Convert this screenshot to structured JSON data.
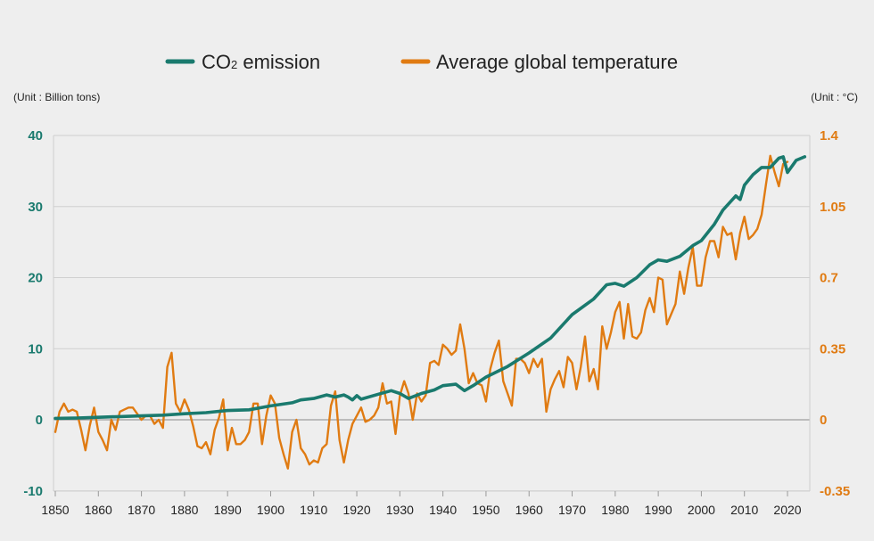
{
  "legend": {
    "co2_label_main": "CO",
    "co2_label_sub": "2",
    "co2_label_rest": " emission",
    "temp_label": "Average global temperature"
  },
  "units": {
    "left": "(Unit : Billion tons)",
    "right": "(Unit : °C)"
  },
  "colors": {
    "co2": "#1a7a6e",
    "temp": "#e07b12",
    "grid": "#cfcfcf",
    "zero": "#8a8a8a",
    "background": "#eeeeee"
  },
  "chart_data": {
    "type": "line",
    "title": "",
    "xlabel": "",
    "ylabel_left": "(Unit : Billion tons)",
    "ylabel_right": "(Unit : °C)",
    "xlim": [
      1850,
      2020
    ],
    "ylim_left": [
      -10,
      40
    ],
    "ylim_right": [
      -0.35,
      1.4
    ],
    "x_ticks": [
      1850,
      1860,
      1870,
      1880,
      1890,
      1900,
      1910,
      1920,
      1930,
      1940,
      1950,
      1960,
      1970,
      1980,
      1990,
      2000,
      2010,
      2020
    ],
    "y_ticks_left": [
      "-10",
      "0",
      "10",
      "20",
      "30",
      "40"
    ],
    "y_ticks_left_values": [
      -10,
      0,
      10,
      20,
      30,
      40
    ],
    "y_ticks_right": [
      "-0.35",
      "0",
      "0.35",
      "0.7",
      "1.05",
      "1.4"
    ],
    "y_ticks_right_values": [
      -0.35,
      0,
      0.35,
      0.7,
      1.05,
      1.4
    ],
    "series": [
      {
        "name": "CO2 emission",
        "axis": "left",
        "points": [
          [
            1850,
            0.2
          ],
          [
            1855,
            0.25
          ],
          [
            1860,
            0.35
          ],
          [
            1865,
            0.45
          ],
          [
            1870,
            0.55
          ],
          [
            1875,
            0.65
          ],
          [
            1880,
            0.85
          ],
          [
            1885,
            1.0
          ],
          [
            1890,
            1.3
          ],
          [
            1895,
            1.4
          ],
          [
            1900,
            1.95
          ],
          [
            1905,
            2.4
          ],
          [
            1907,
            2.8
          ],
          [
            1910,
            3.0
          ],
          [
            1913,
            3.5
          ],
          [
            1915,
            3.2
          ],
          [
            1917,
            3.5
          ],
          [
            1918,
            3.2
          ],
          [
            1919,
            2.8
          ],
          [
            1920,
            3.4
          ],
          [
            1921,
            2.9
          ],
          [
            1925,
            3.6
          ],
          [
            1928,
            4.1
          ],
          [
            1930,
            3.7
          ],
          [
            1932,
            3.0
          ],
          [
            1935,
            3.7
          ],
          [
            1938,
            4.2
          ],
          [
            1940,
            4.8
          ],
          [
            1943,
            5.0
          ],
          [
            1945,
            4.1
          ],
          [
            1947,
            4.8
          ],
          [
            1950,
            6.0
          ],
          [
            1955,
            7.5
          ],
          [
            1960,
            9.4
          ],
          [
            1965,
            11.5
          ],
          [
            1970,
            14.8
          ],
          [
            1975,
            17.0
          ],
          [
            1978,
            19.0
          ],
          [
            1980,
            19.2
          ],
          [
            1982,
            18.8
          ],
          [
            1985,
            20.0
          ],
          [
            1988,
            21.8
          ],
          [
            1990,
            22.5
          ],
          [
            1992,
            22.3
          ],
          [
            1995,
            23.0
          ],
          [
            1998,
            24.5
          ],
          [
            2000,
            25.2
          ],
          [
            2003,
            27.5
          ],
          [
            2005,
            29.5
          ],
          [
            2008,
            31.5
          ],
          [
            2009,
            31.0
          ],
          [
            2010,
            33.0
          ],
          [
            2012,
            34.5
          ],
          [
            2014,
            35.5
          ],
          [
            2016,
            35.5
          ],
          [
            2018,
            36.8
          ],
          [
            2019,
            37.0
          ],
          [
            2020,
            34.8
          ],
          [
            2022,
            36.5
          ],
          [
            2024,
            37.0
          ]
        ]
      },
      {
        "name": "Average global temperature",
        "axis": "right",
        "points": [
          [
            1850,
            -0.06
          ],
          [
            1851,
            0.04
          ],
          [
            1852,
            0.08
          ],
          [
            1853,
            0.04
          ],
          [
            1854,
            0.05
          ],
          [
            1855,
            0.04
          ],
          [
            1856,
            -0.05
          ],
          [
            1857,
            -0.15
          ],
          [
            1858,
            -0.03
          ],
          [
            1859,
            0.06
          ],
          [
            1860,
            -0.06
          ],
          [
            1861,
            -0.1
          ],
          [
            1862,
            -0.15
          ],
          [
            1863,
            0.0
          ],
          [
            1864,
            -0.05
          ],
          [
            1865,
            0.04
          ],
          [
            1866,
            0.05
          ],
          [
            1867,
            0.06
          ],
          [
            1868,
            0.06
          ],
          [
            1869,
            0.03
          ],
          [
            1870,
            0.0
          ],
          [
            1871,
            0.02
          ],
          [
            1872,
            0.02
          ],
          [
            1873,
            -0.02
          ],
          [
            1874,
            0.0
          ],
          [
            1875,
            -0.04
          ],
          [
            1876,
            0.26
          ],
          [
            1877,
            0.33
          ],
          [
            1878,
            0.08
          ],
          [
            1879,
            0.04
          ],
          [
            1880,
            0.1
          ],
          [
            1881,
            0.05
          ],
          [
            1882,
            -0.03
          ],
          [
            1883,
            -0.13
          ],
          [
            1884,
            -0.14
          ],
          [
            1885,
            -0.11
          ],
          [
            1886,
            -0.17
          ],
          [
            1887,
            -0.05
          ],
          [
            1888,
            0.01
          ],
          [
            1889,
            0.1
          ],
          [
            1890,
            -0.15
          ],
          [
            1891,
            -0.04
          ],
          [
            1892,
            -0.12
          ],
          [
            1893,
            -0.12
          ],
          [
            1894,
            -0.1
          ],
          [
            1895,
            -0.06
          ],
          [
            1896,
            0.08
          ],
          [
            1897,
            0.08
          ],
          [
            1898,
            -0.12
          ],
          [
            1899,
            0.02
          ],
          [
            1900,
            0.12
          ],
          [
            1901,
            0.08
          ],
          [
            1902,
            -0.09
          ],
          [
            1903,
            -0.17
          ],
          [
            1904,
            -0.24
          ],
          [
            1905,
            -0.06
          ],
          [
            1906,
            0.0
          ],
          [
            1907,
            -0.14
          ],
          [
            1908,
            -0.17
          ],
          [
            1909,
            -0.22
          ],
          [
            1910,
            -0.2
          ],
          [
            1911,
            -0.21
          ],
          [
            1912,
            -0.14
          ],
          [
            1913,
            -0.12
          ],
          [
            1914,
            0.07
          ],
          [
            1915,
            0.14
          ],
          [
            1916,
            -0.1
          ],
          [
            1917,
            -0.21
          ],
          [
            1918,
            -0.1
          ],
          [
            1919,
            -0.02
          ],
          [
            1920,
            0.02
          ],
          [
            1921,
            0.06
          ],
          [
            1922,
            -0.01
          ],
          [
            1923,
            0.0
          ],
          [
            1924,
            0.02
          ],
          [
            1925,
            0.06
          ],
          [
            1926,
            0.18
          ],
          [
            1927,
            0.08
          ],
          [
            1928,
            0.09
          ],
          [
            1929,
            -0.07
          ],
          [
            1930,
            0.12
          ],
          [
            1931,
            0.19
          ],
          [
            1932,
            0.13
          ],
          [
            1933,
            0.0
          ],
          [
            1934,
            0.13
          ],
          [
            1935,
            0.09
          ],
          [
            1936,
            0.12
          ],
          [
            1937,
            0.28
          ],
          [
            1938,
            0.29
          ],
          [
            1939,
            0.27
          ],
          [
            1940,
            0.37
          ],
          [
            1941,
            0.35
          ],
          [
            1942,
            0.32
          ],
          [
            1943,
            0.34
          ],
          [
            1944,
            0.47
          ],
          [
            1945,
            0.35
          ],
          [
            1946,
            0.18
          ],
          [
            1947,
            0.23
          ],
          [
            1948,
            0.18
          ],
          [
            1949,
            0.17
          ],
          [
            1950,
            0.09
          ],
          [
            1951,
            0.25
          ],
          [
            1952,
            0.33
          ],
          [
            1953,
            0.39
          ],
          [
            1954,
            0.19
          ],
          [
            1955,
            0.13
          ],
          [
            1956,
            0.07
          ],
          [
            1957,
            0.3
          ],
          [
            1958,
            0.3
          ],
          [
            1959,
            0.28
          ],
          [
            1960,
            0.23
          ],
          [
            1961,
            0.3
          ],
          [
            1962,
            0.26
          ],
          [
            1963,
            0.3
          ],
          [
            1964,
            0.04
          ],
          [
            1965,
            0.15
          ],
          [
            1966,
            0.2
          ],
          [
            1967,
            0.24
          ],
          [
            1968,
            0.16
          ],
          [
            1969,
            0.31
          ],
          [
            1970,
            0.28
          ],
          [
            1971,
            0.15
          ],
          [
            1972,
            0.26
          ],
          [
            1973,
            0.41
          ],
          [
            1974,
            0.19
          ],
          [
            1975,
            0.25
          ],
          [
            1976,
            0.15
          ],
          [
            1977,
            0.46
          ],
          [
            1978,
            0.35
          ],
          [
            1979,
            0.43
          ],
          [
            1980,
            0.53
          ],
          [
            1981,
            0.58
          ],
          [
            1982,
            0.4
          ],
          [
            1983,
            0.57
          ],
          [
            1984,
            0.41
          ],
          [
            1985,
            0.4
          ],
          [
            1986,
            0.43
          ],
          [
            1987,
            0.54
          ],
          [
            1988,
            0.6
          ],
          [
            1989,
            0.53
          ],
          [
            1990,
            0.7
          ],
          [
            1991,
            0.69
          ],
          [
            1992,
            0.47
          ],
          [
            1993,
            0.52
          ],
          [
            1994,
            0.57
          ],
          [
            1995,
            0.73
          ],
          [
            1996,
            0.62
          ],
          [
            1997,
            0.75
          ],
          [
            1998,
            0.85
          ],
          [
            1999,
            0.66
          ],
          [
            2000,
            0.66
          ],
          [
            2001,
            0.8
          ],
          [
            2002,
            0.88
          ],
          [
            2003,
            0.88
          ],
          [
            2004,
            0.8
          ],
          [
            2005,
            0.95
          ],
          [
            2006,
            0.91
          ],
          [
            2007,
            0.92
          ],
          [
            2008,
            0.79
          ],
          [
            2009,
            0.92
          ],
          [
            2010,
            1.0
          ],
          [
            2011,
            0.89
          ],
          [
            2012,
            0.91
          ],
          [
            2013,
            0.94
          ],
          [
            2014,
            1.01
          ],
          [
            2015,
            1.16
          ],
          [
            2016,
            1.3
          ],
          [
            2017,
            1.22
          ],
          [
            2018,
            1.15
          ],
          [
            2019,
            1.26
          ],
          [
            2020,
            1.27
          ]
        ]
      }
    ]
  }
}
